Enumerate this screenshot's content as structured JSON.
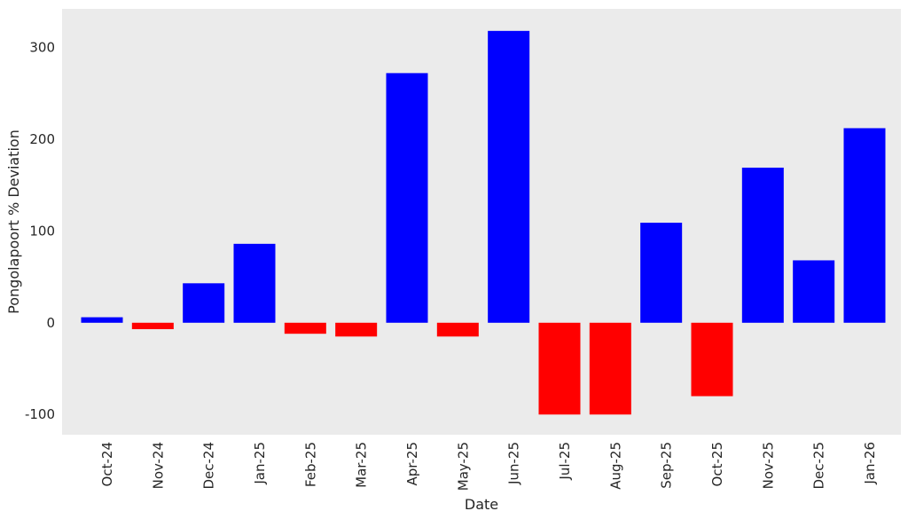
{
  "chart_data": {
    "type": "bar",
    "xlabel": "Date",
    "ylabel": "Pongolapoort % Deviation",
    "categories": [
      "Oct-24",
      "Nov-24",
      "Dec-24",
      "Jan-25",
      "Feb-25",
      "Mar-25",
      "Apr-25",
      "May-25",
      "Jun-25",
      "Jul-25",
      "Aug-25",
      "Sep-25",
      "Oct-25",
      "Nov-25",
      "Dec-25",
      "Jan-26"
    ],
    "values": [
      6,
      -7,
      43,
      86,
      -12,
      -15,
      272,
      -15,
      318,
      -100,
      -100,
      109,
      -80,
      169,
      68,
      212
    ],
    "ylim": [
      -122,
      342
    ],
    "yticks": [
      -100,
      0,
      100,
      200,
      300
    ],
    "ytick_labels": [
      "-100",
      "0",
      "100",
      "200",
      "300"
    ],
    "grid": false,
    "colors": {
      "positive": "#0000ff",
      "negative": "#ff0000",
      "plot_background": "#ebebeb"
    }
  }
}
